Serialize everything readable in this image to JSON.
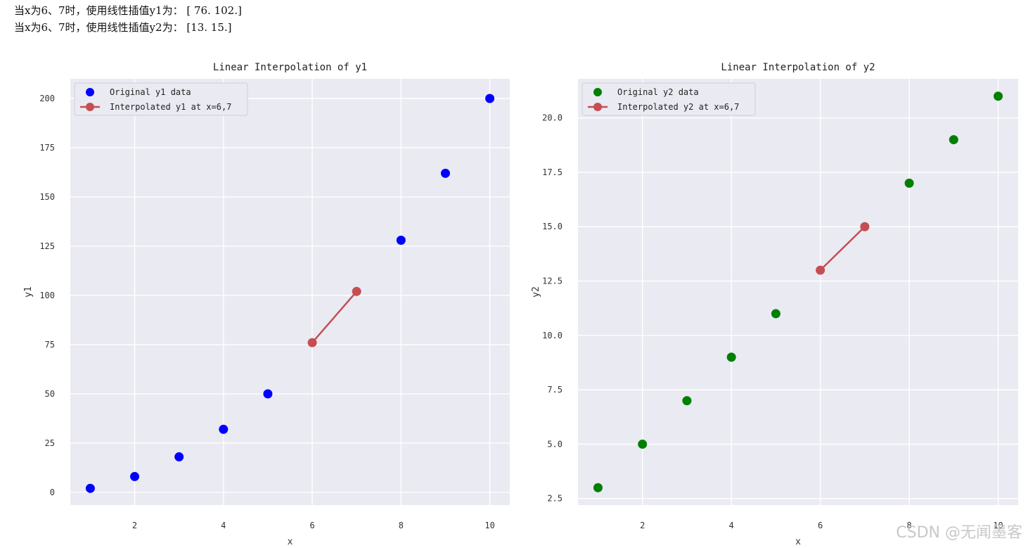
{
  "output_lines": [
    "当x为6、7时，使用线性插值y1为： [ 76. 102.]",
    "当x为6、7时，使用线性插值y2为： [13. 15.]"
  ],
  "watermark": "CSDN @无闻墨客",
  "colors": {
    "plot_bg": "#eaeaf2",
    "grid": "#ffffff",
    "y1_points": "#0000ff",
    "y2_points": "#008000",
    "interp": "#c44e52"
  },
  "chart_data": [
    {
      "type": "scatter",
      "title": "Linear Interpolation of y1",
      "xlabel": "x",
      "ylabel": "y1",
      "xlim": [
        0.55,
        10.45
      ],
      "ylim": [
        -6.5,
        210
      ],
      "xticks": [
        2,
        4,
        6,
        8,
        10
      ],
      "yticks": [
        0,
        25,
        50,
        75,
        100,
        125,
        150,
        175,
        200
      ],
      "ytick_labels": [
        "0",
        "25",
        "50",
        "75",
        "100",
        "125",
        "150",
        "175",
        "200"
      ],
      "grid": true,
      "legend_position": "top-left",
      "series": [
        {
          "name": "Original y1 data",
          "kind": "scatter",
          "color": "#0000ff",
          "x": [
            1,
            2,
            3,
            4,
            5,
            8,
            9,
            10
          ],
          "y": [
            2,
            8,
            18,
            32,
            50,
            128,
            162,
            200
          ]
        },
        {
          "name": "Interpolated y1 at x=6,7",
          "kind": "line-marker",
          "color": "#c44e52",
          "x": [
            6,
            7
          ],
          "y": [
            76,
            102
          ]
        }
      ]
    },
    {
      "type": "scatter",
      "title": "Linear Interpolation of y2",
      "xlabel": "x",
      "ylabel": "y2",
      "xlim": [
        0.55,
        10.45
      ],
      "ylim": [
        2.2,
        21.8
      ],
      "xticks": [
        2,
        4,
        6,
        8,
        10
      ],
      "yticks": [
        2.5,
        5.0,
        7.5,
        10.0,
        12.5,
        15.0,
        17.5,
        20.0
      ],
      "ytick_labels": [
        "2.5",
        "5.0",
        "7.5",
        "10.0",
        "12.5",
        "15.0",
        "17.5",
        "20.0"
      ],
      "grid": true,
      "legend_position": "top-left",
      "series": [
        {
          "name": "Original y2 data",
          "kind": "scatter",
          "color": "#008000",
          "x": [
            1,
            2,
            3,
            4,
            5,
            8,
            9,
            10
          ],
          "y": [
            3,
            5,
            7,
            9,
            11,
            17,
            19,
            21
          ]
        },
        {
          "name": "Interpolated y2 at x=6,7",
          "kind": "line-marker",
          "color": "#c44e52",
          "x": [
            6,
            7
          ],
          "y": [
            13,
            15
          ]
        }
      ]
    }
  ]
}
